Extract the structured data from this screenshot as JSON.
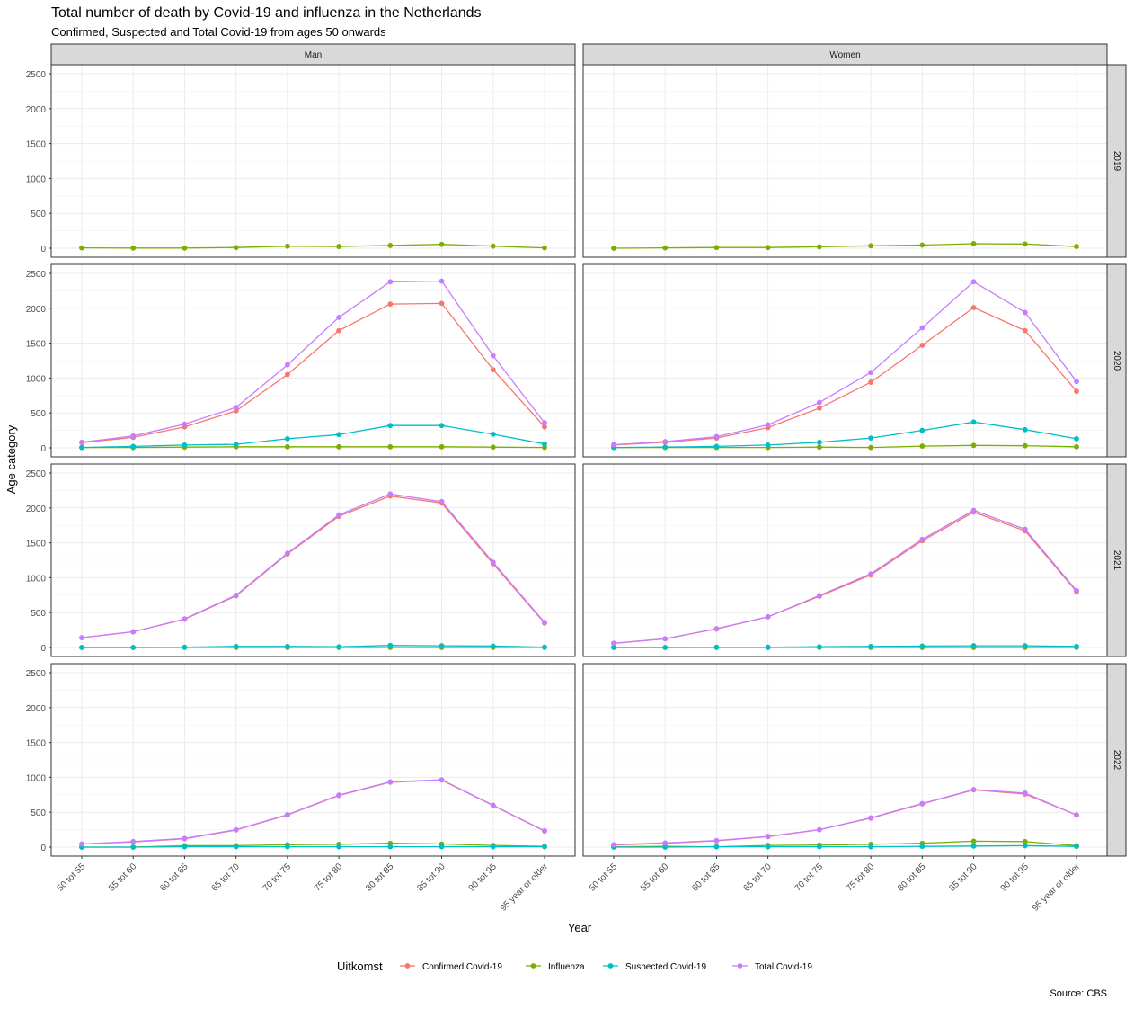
{
  "chart_data": {
    "type": "line",
    "title": "Total number of death by Covid-19 and influenza in the Netherlands",
    "subtitle": "Confirmed, Suspected and Total Covid-19 from ages 50 onwards",
    "xlabel": "Year",
    "ylabel": "Age category",
    "caption": "Source: CBS",
    "legend_title": "Uitkomst",
    "legend_position": "bottom",
    "grid": true,
    "ylim": [
      0,
      2500
    ],
    "yticks": [
      0,
      500,
      1000,
      1500,
      2000,
      2500
    ],
    "categories": [
      "50 tot 55",
      "55 tot 60",
      "60 tot 65",
      "65 tot 70",
      "70 tot 75",
      "75 tot 80",
      "80 tot 85",
      "85 tot 90",
      "90 tot 95",
      "95 year or older"
    ],
    "columns": [
      "Man",
      "Women"
    ],
    "rows": [
      "2019",
      "2020",
      "2021",
      "2022"
    ],
    "series": [
      {
        "name": "Confirmed Covid-19",
        "color": "#F8766D"
      },
      {
        "name": "Influenza",
        "color": "#7CAE00"
      },
      {
        "name": "Suspected Covid-19",
        "color": "#00BFC4"
      },
      {
        "name": "Total Covid-19",
        "color": "#C77CFF"
      }
    ],
    "panels": [
      {
        "column": "Man",
        "row": "2019",
        "series": [
          {
            "name": "Influenza",
            "values": [
              5,
              3,
              3,
              10,
              30,
              25,
              40,
              55,
              30,
              5
            ]
          }
        ]
      },
      {
        "column": "Women",
        "row": "2019",
        "series": [
          {
            "name": "Influenza",
            "values": [
              0,
              5,
              10,
              10,
              20,
              35,
              45,
              65,
              60,
              25
            ]
          }
        ]
      },
      {
        "column": "Man",
        "row": "2020",
        "series": [
          {
            "name": "Confirmed Covid-19",
            "values": [
              75,
              150,
              300,
              530,
              1050,
              1680,
              2060,
              2070,
              1120,
              300
            ]
          },
          {
            "name": "Influenza",
            "values": [
              5,
              5,
              10,
              15,
              15,
              15,
              15,
              15,
              10,
              5
            ]
          },
          {
            "name": "Suspected Covid-19",
            "values": [
              5,
              20,
              40,
              50,
              130,
              190,
              320,
              320,
              195,
              55
            ]
          },
          {
            "name": "Total Covid-19",
            "values": [
              80,
              170,
              340,
              580,
              1190,
              1870,
              2380,
              2390,
              1320,
              360
            ]
          }
        ]
      },
      {
        "column": "Women",
        "row": "2020",
        "series": [
          {
            "name": "Confirmed Covid-19",
            "values": [
              40,
              80,
              140,
              290,
              570,
              940,
              1470,
              2010,
              1680,
              810
            ]
          },
          {
            "name": "Influenza",
            "values": [
              5,
              5,
              5,
              5,
              10,
              5,
              25,
              35,
              30,
              15
            ]
          },
          {
            "name": "Suspected Covid-19",
            "values": [
              5,
              10,
              20,
              40,
              80,
              140,
              250,
              370,
              260,
              130
            ]
          },
          {
            "name": "Total Covid-19",
            "values": [
              45,
              90,
              160,
              330,
              650,
              1080,
              1720,
              2380,
              1940,
              950
            ]
          }
        ]
      },
      {
        "column": "Man",
        "row": "2021",
        "series": [
          {
            "name": "Confirmed Covid-19",
            "values": [
              140,
              225,
              405,
              740,
              1340,
              1880,
              2170,
              2070,
              1200,
              350
            ]
          },
          {
            "name": "Influenza",
            "values": [
              0,
              0,
              0,
              0,
              0,
              0,
              0,
              0,
              0,
              0
            ]
          },
          {
            "name": "Suspected Covid-19",
            "values": [
              0,
              0,
              5,
              15,
              15,
              10,
              30,
              25,
              20,
              5
            ]
          },
          {
            "name": "Total Covid-19",
            "values": [
              140,
              225,
              410,
              750,
              1350,
              1900,
              2200,
              2090,
              1220,
              360
            ]
          }
        ]
      },
      {
        "column": "Women",
        "row": "2021",
        "series": [
          {
            "name": "Confirmed Covid-19",
            "values": [
              60,
              125,
              265,
              440,
              735,
              1040,
              1530,
              1940,
              1670,
              800
            ]
          },
          {
            "name": "Influenza",
            "values": [
              0,
              0,
              0,
              0,
              0,
              0,
              0,
              0,
              0,
              0
            ]
          },
          {
            "name": "Suspected Covid-19",
            "values": [
              0,
              0,
              5,
              5,
              10,
              15,
              20,
              25,
              25,
              15
            ]
          },
          {
            "name": "Total Covid-19",
            "values": [
              60,
              125,
              270,
              440,
              745,
              1055,
              1550,
              1965,
              1695,
              815
            ]
          }
        ]
      },
      {
        "column": "Man",
        "row": "2022",
        "series": [
          {
            "name": "Confirmed Covid-19",
            "values": [
              45,
              75,
              120,
              245,
              460,
              740,
              930,
              960,
              595,
              230
            ]
          },
          {
            "name": "Influenza",
            "values": [
              0,
              0,
              20,
              20,
              35,
              40,
              55,
              45,
              25,
              10
            ]
          },
          {
            "name": "Suspected Covid-19",
            "values": [
              0,
              0,
              5,
              5,
              5,
              5,
              5,
              5,
              5,
              5
            ]
          },
          {
            "name": "Total Covid-19",
            "values": [
              45,
              80,
              125,
              250,
              465,
              745,
              935,
              965,
              600,
              235
            ]
          }
        ]
      },
      {
        "column": "Women",
        "row": "2022",
        "series": [
          {
            "name": "Confirmed Covid-19",
            "values": [
              30,
              55,
              90,
              150,
              250,
              415,
              620,
              820,
              760,
              460
            ]
          },
          {
            "name": "Influenza",
            "values": [
              5,
              10,
              5,
              25,
              30,
              40,
              55,
              85,
              80,
              20
            ]
          },
          {
            "name": "Suspected Covid-19",
            "values": [
              0,
              0,
              5,
              5,
              5,
              5,
              10,
              15,
              20,
              10
            ]
          },
          {
            "name": "Total Covid-19",
            "values": [
              35,
              60,
              95,
              155,
              250,
              420,
              625,
              825,
              775,
              460
            ]
          }
        ]
      }
    ]
  }
}
